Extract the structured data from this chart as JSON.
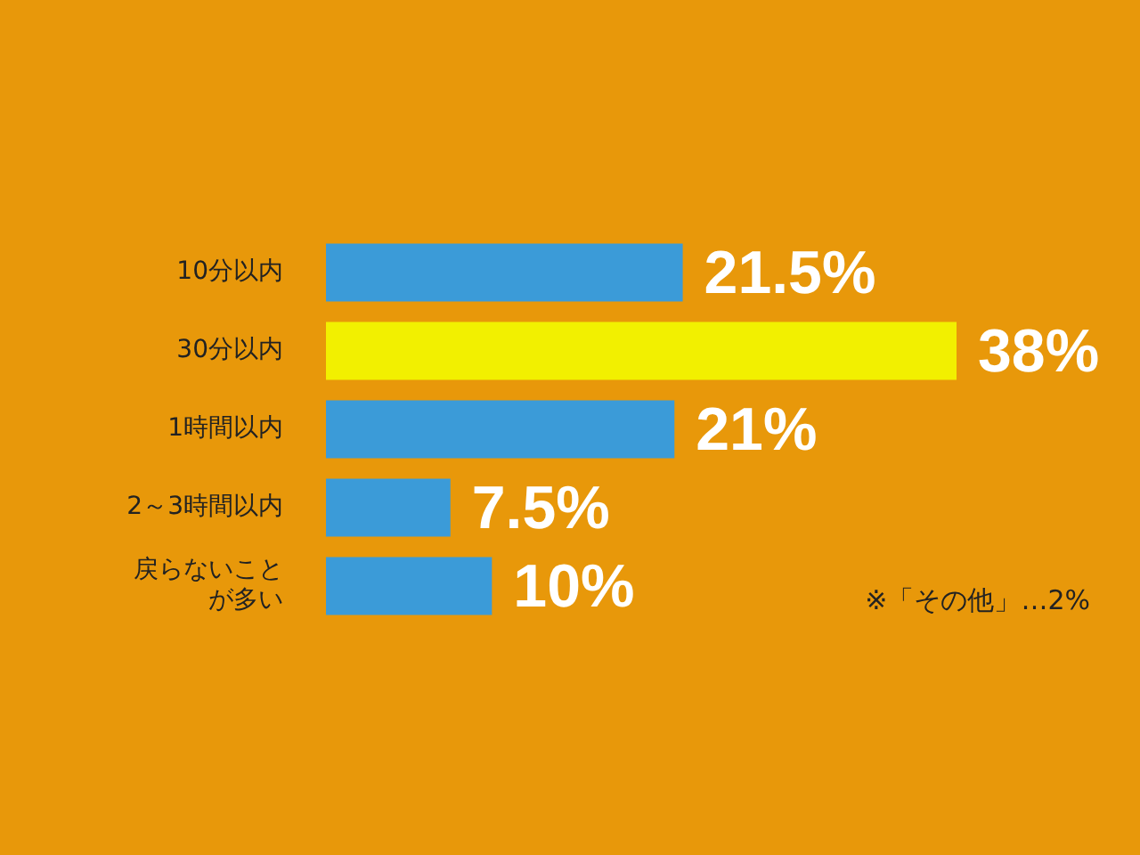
{
  "chart_data": {
    "type": "bar",
    "orientation": "horizontal",
    "categories": [
      "10分以内",
      "30分以内",
      "1時間以内",
      "2～3時間以内",
      "戻らないことが多い"
    ],
    "values": [
      21.5,
      38,
      21,
      7.5,
      10
    ],
    "colors": [
      "#3b9bd8",
      "#f2f000",
      "#3b9bd8",
      "#3b9bd8",
      "#3b9bd8"
    ],
    "value_labels": [
      "21.5%",
      "38%",
      "21%",
      "7.5%",
      "10%"
    ],
    "annotations": [
      "※「その他」…2%"
    ],
    "tick_labels": "y"
  }
}
